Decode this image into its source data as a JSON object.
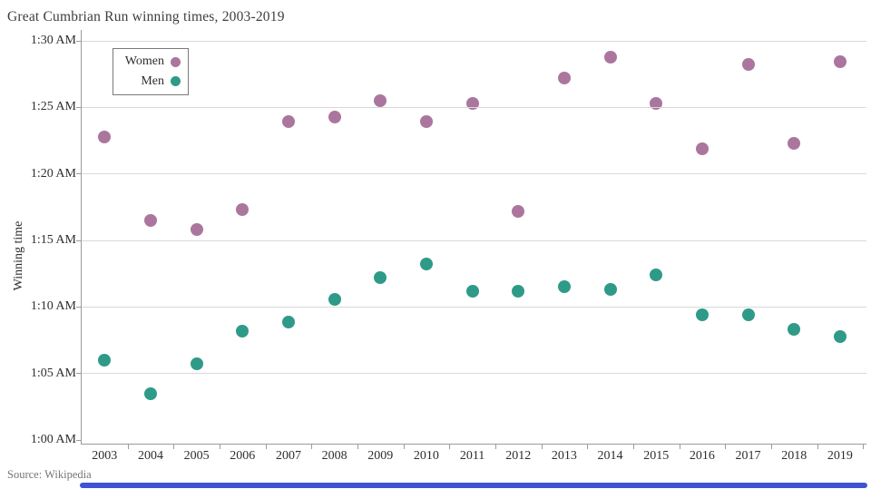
{
  "chart_data": {
    "type": "scatter",
    "title": "Great Cumbrian Run winning times, 2003-2019",
    "source": "Source: Wikipedia",
    "ylabel": "Winning time",
    "values_unit": "minutes after 1:00 AM",
    "y_range_minutes": [
      0,
      30
    ],
    "grid": "horizontal gridlines on",
    "x_categories": [
      "2003",
      "2004",
      "2005",
      "2006",
      "2007",
      "2008",
      "2009",
      "2010",
      "2011",
      "2012",
      "2013",
      "2014",
      "2015",
      "2016",
      "2017",
      "2018",
      "2019"
    ],
    "y_axis_ticks": [
      {
        "label": "1:30 AM",
        "minutes_after_1am": 30
      },
      {
        "label": "1:25 AM",
        "minutes_after_1am": 25
      },
      {
        "label": "1:20 AM",
        "minutes_after_1am": 20
      },
      {
        "label": "1:15 AM",
        "minutes_after_1am": 15
      },
      {
        "label": "1:10 AM",
        "minutes_after_1am": 10
      },
      {
        "label": "1:05 AM",
        "minutes_after_1am": 5
      },
      {
        "label": "1:00 AM",
        "minutes_after_1am": 0
      }
    ],
    "legend": {
      "position": "top-left",
      "entries": [
        {
          "label": "Women",
          "color": "#ab769d"
        },
        {
          "label": "Men",
          "color": "#2f9a88"
        }
      ]
    },
    "series": [
      {
        "name": "Women",
        "color": "#ab769d",
        "values": [
          22.8,
          16.5,
          15.8,
          17.3,
          23.9,
          24.3,
          25.5,
          23.9,
          25.3,
          17.2,
          27.2,
          28.8,
          25.3,
          21.9,
          28.2,
          22.3,
          28.4
        ]
      },
      {
        "name": "Men",
        "color": "#2f9a88",
        "values": [
          6.0,
          3.5,
          5.7,
          8.2,
          8.9,
          10.6,
          12.2,
          13.2,
          11.2,
          11.2,
          11.5,
          11.3,
          12.4,
          9.4,
          9.4,
          8.3,
          7.8
        ]
      }
    ],
    "style_colors": {
      "gridline": "#d9d9d9",
      "axis": "#9b9b9b",
      "tick_text": "#2e2e2e",
      "muted_text": "#767676",
      "bottom_bar": "#4053d4"
    }
  }
}
